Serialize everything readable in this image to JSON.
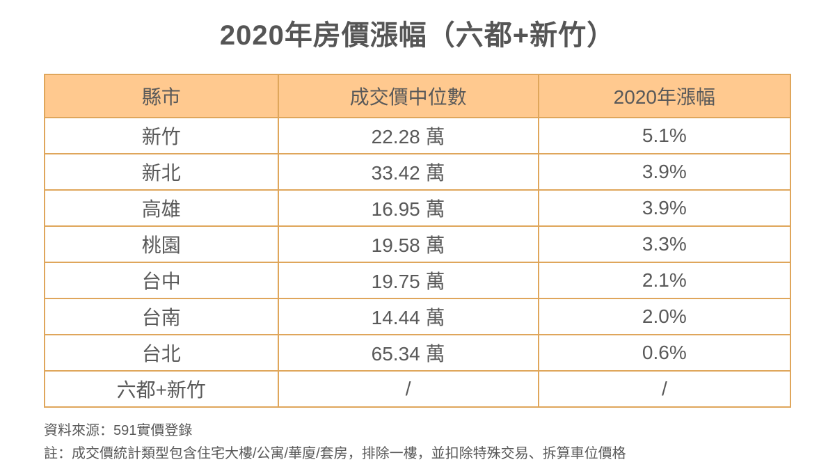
{
  "title": "2020年房價漲幅（六都+新竹）",
  "chart_data": {
    "type": "table",
    "title": "2020年房價漲幅（六都+新竹）",
    "columns": [
      "縣市",
      "成交價中位數",
      "2020年漲幅"
    ],
    "rows": [
      [
        "新竹",
        "22.28 萬",
        "5.1%"
      ],
      [
        "新北",
        "33.42 萬",
        "3.9%"
      ],
      [
        "高雄",
        "16.95 萬",
        "3.9%"
      ],
      [
        "桃園",
        "19.58 萬",
        "3.3%"
      ],
      [
        "台中",
        "19.75 萬",
        "2.1%"
      ],
      [
        "台南",
        "14.44 萬",
        "2.0%"
      ],
      [
        "台北",
        "65.34 萬",
        "0.6%"
      ],
      [
        "六都+新竹",
        "/",
        "/"
      ]
    ],
    "values_numeric": {
      "median_price_wan": [
        22.28,
        33.42,
        16.95,
        19.58,
        19.75,
        14.44,
        65.34,
        null
      ],
      "growth_pct_2020": [
        5.1,
        3.9,
        3.9,
        3.3,
        2.1,
        2.0,
        0.6,
        null
      ]
    }
  },
  "footer": {
    "source": "資料來源：591實價登錄",
    "note": "註：成交價統計類型包含住宅大樓/公寓/華廈/套房，排除一樓，並扣除特殊交易、拆算車位價格"
  },
  "colors": {
    "header_bg": "#ffc98f",
    "table_border": "#dfa65b",
    "text": "#595959"
  }
}
